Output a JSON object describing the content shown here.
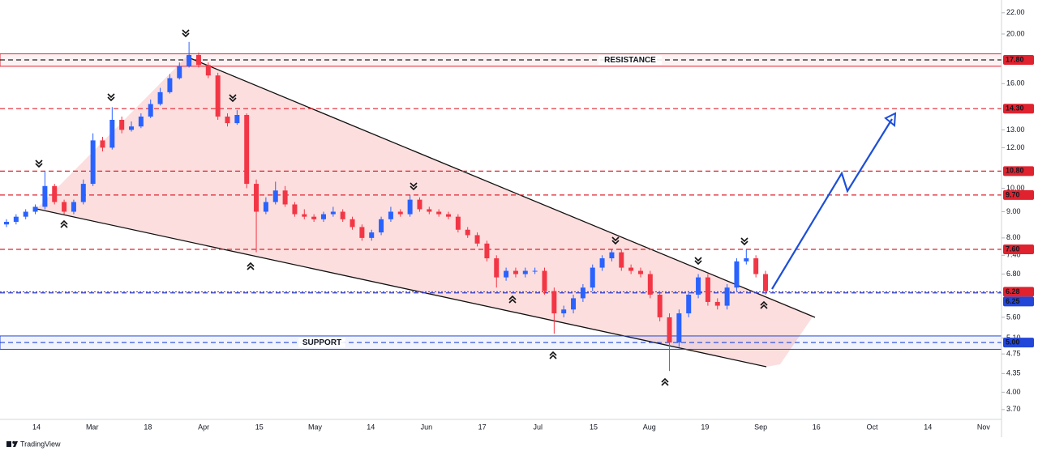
{
  "chart_data": {
    "type": "candlestick",
    "log_scale": true,
    "ylim": [
      3.54,
      23.3
    ],
    "yticks": [
      {
        "value": 22,
        "label": "22.00"
      },
      {
        "value": 20,
        "label": "20.00"
      },
      {
        "value": 16,
        "label": "16.00"
      },
      {
        "value": 13,
        "label": "13.00"
      },
      {
        "value": 12,
        "label": "12.00"
      },
      {
        "value": 10,
        "label": "10.00"
      },
      {
        "value": 9,
        "label": "9.00"
      },
      {
        "value": 8,
        "label": "8.00"
      },
      {
        "value": 7.4,
        "label": "7.40"
      },
      {
        "value": 6.8,
        "label": "6.80"
      },
      {
        "value": 5.6,
        "label": "5.60"
      },
      {
        "value": 5.1,
        "label": "5.10"
      },
      {
        "value": 4.75,
        "label": "4.75"
      },
      {
        "value": 4.35,
        "label": "4.35"
      },
      {
        "value": 4,
        "label": "4.00"
      },
      {
        "value": 3.7,
        "label": "3.70"
      }
    ],
    "xticks": [
      "14",
      "Mar",
      "18",
      "Apr",
      "15",
      "May",
      "14",
      "Jun",
      "17",
      "Jul",
      "15",
      "Aug",
      "19",
      "Sep",
      "16",
      "Oct",
      "14",
      "Nov"
    ],
    "up_color": "#2962ff",
    "down_color": "#f23645",
    "open": [
      8.5,
      8.6,
      8.8,
      9.0,
      9.2,
      10.1,
      9.4,
      9.0,
      9.4,
      10.2,
      12.4,
      12.0,
      13.6,
      13.0,
      13.2,
      13.8,
      14.6,
      15.4,
      16.4,
      17.3,
      18.2,
      17.4,
      16.6,
      13.8,
      13.4,
      13.9,
      10.2,
      9.0,
      9.4,
      9.9,
      9.3,
      8.9,
      8.8,
      8.7,
      8.9,
      9.0,
      8.7,
      8.4,
      8.0,
      8.2,
      8.7,
      9.0,
      8.9,
      9.5,
      9.1,
      9.0,
      8.9,
      8.8,
      8.3,
      8.1,
      7.8,
      7.3,
      6.7,
      6.9,
      6.8,
      6.9,
      6.9,
      6.3,
      5.7,
      5.8,
      6.1,
      6.4,
      7.0,
      7.3,
      7.5,
      7.0,
      6.9,
      6.8,
      6.2,
      5.6,
      5.0,
      5.7,
      6.2,
      6.7,
      6.0,
      5.9,
      6.4,
      7.2,
      7.3,
      6.8
    ],
    "high": [
      8.7,
      8.9,
      9.1,
      9.3,
      10.8,
      10.2,
      9.5,
      9.5,
      10.4,
      12.8,
      12.6,
      14.4,
      13.8,
      13.5,
      14.0,
      14.9,
      15.7,
      16.7,
      17.6,
      19.3,
      18.4,
      17.6,
      16.8,
      14.0,
      14.2,
      14.0,
      10.4,
      9.6,
      10.3,
      10.1,
      9.4,
      9.1,
      8.9,
      9.0,
      9.2,
      9.1,
      8.8,
      8.5,
      8.3,
      8.8,
      9.2,
      9.1,
      9.7,
      9.6,
      9.2,
      9.1,
      9.0,
      8.9,
      8.4,
      8.2,
      7.9,
      7.4,
      7.0,
      7.0,
      7.0,
      7.0,
      7.0,
      6.4,
      5.9,
      6.2,
      6.5,
      7.1,
      7.4,
      7.6,
      7.6,
      7.1,
      7.0,
      6.9,
      6.3,
      5.7,
      5.8,
      6.3,
      6.8,
      6.8,
      6.1,
      6.5,
      7.3,
      7.6,
      7.4,
      6.9
    ],
    "low": [
      8.4,
      8.5,
      8.7,
      8.9,
      9.1,
      9.3,
      8.9,
      8.9,
      9.3,
      10.1,
      11.8,
      11.9,
      12.8,
      12.9,
      13.1,
      13.7,
      14.5,
      15.3,
      16.3,
      17.2,
      17.2,
      16.4,
      13.6,
      13.2,
      13.3,
      10.0,
      7.5,
      8.9,
      9.3,
      9.2,
      8.8,
      8.7,
      8.6,
      8.6,
      8.8,
      8.6,
      8.3,
      7.9,
      7.9,
      8.1,
      8.6,
      8.8,
      8.8,
      9.0,
      8.9,
      8.8,
      8.7,
      8.2,
      8.0,
      7.7,
      7.2,
      6.4,
      6.6,
      6.7,
      6.7,
      6.8,
      6.2,
      5.2,
      5.6,
      5.7,
      6.0,
      6.3,
      6.9,
      7.2,
      6.9,
      6.8,
      6.7,
      6.1,
      5.5,
      4.4,
      4.9,
      5.6,
      6.1,
      5.9,
      5.8,
      5.8,
      6.3,
      7.1,
      6.7,
      6.2
    ],
    "close": [
      8.6,
      8.8,
      9.0,
      9.2,
      10.1,
      9.4,
      9.0,
      9.4,
      10.2,
      12.4,
      12.0,
      13.6,
      13.0,
      13.2,
      13.8,
      14.6,
      15.4,
      16.4,
      17.3,
      18.2,
      17.4,
      16.6,
      13.8,
      13.4,
      13.9,
      10.2,
      9.0,
      9.4,
      9.9,
      9.3,
      8.9,
      8.8,
      8.7,
      8.9,
      9.0,
      8.7,
      8.4,
      8.0,
      8.2,
      8.7,
      9.0,
      8.9,
      9.5,
      9.1,
      9.0,
      8.9,
      8.8,
      8.3,
      8.1,
      7.8,
      7.3,
      6.7,
      6.9,
      6.8,
      6.9,
      6.9,
      6.3,
      5.7,
      5.8,
      6.1,
      6.4,
      7.0,
      7.3,
      7.5,
      7.0,
      6.9,
      6.8,
      6.2,
      5.6,
      5.0,
      5.7,
      6.2,
      6.7,
      6.0,
      5.9,
      6.4,
      7.2,
      7.3,
      6.8,
      6.3
    ],
    "levels": [
      {
        "value": 17.8,
        "label": "17.80",
        "color": "#e0222e"
      },
      {
        "value": 14.3,
        "label": "14.30",
        "color": "#e0222e"
      },
      {
        "value": 10.8,
        "label": "10.80",
        "color": "#e0222e"
      },
      {
        "value": 9.7,
        "label": "9.70",
        "color": "#e0222e"
      },
      {
        "value": 7.6,
        "label": "7.60",
        "color": "#e0222e"
      },
      {
        "value": 6.28,
        "label": "6.28",
        "color": "#e0222e"
      },
      {
        "value": 6.25,
        "label": "6.25",
        "color": "#2246d8"
      },
      {
        "value": 5.0,
        "label": "5.00",
        "color": "#2246d8"
      }
    ],
    "zones": [
      {
        "label": "RESISTANCE",
        "top": 18.3,
        "bottom": 17.3,
        "color": "#e0222e"
      },
      {
        "label": "SUPPORT",
        "top": 5.15,
        "bottom": 4.85,
        "color": "#2246d8"
      }
    ],
    "brand": "TradingView"
  }
}
